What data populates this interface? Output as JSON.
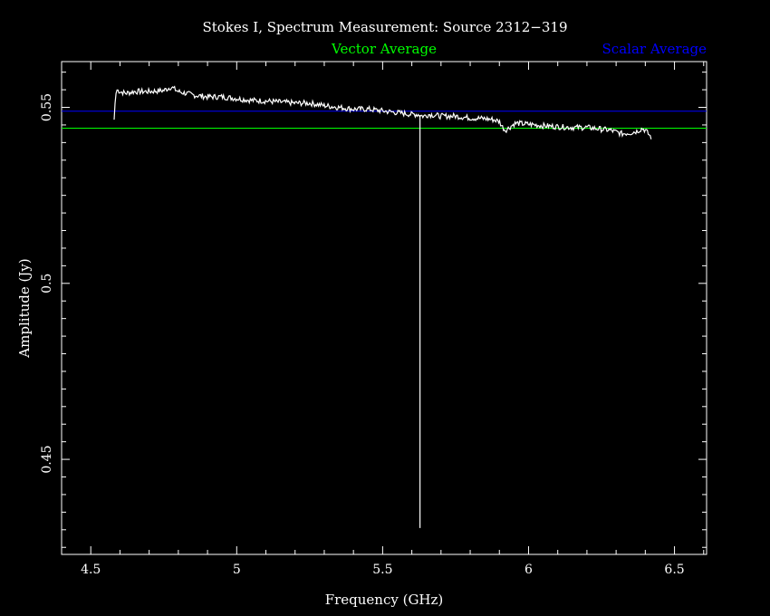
{
  "chart_data": {
    "type": "line",
    "title": "Stokes I, Spectrum Measurement: Source 2312−319",
    "xlabel": "Frequency (GHz)",
    "ylabel": "Amplitude (Jy)",
    "xlim": [
      4.4,
      6.61
    ],
    "ylim": [
      0.423,
      0.563
    ],
    "x_ticks": [
      4.5,
      5,
      5.5,
      6,
      6.5
    ],
    "x_tick_labels": [
      "4.5",
      "5",
      "5.5",
      "6",
      "6.5"
    ],
    "y_ticks": [
      0.45,
      0.5,
      0.55
    ],
    "y_tick_labels": [
      "0.45",
      "0.5",
      "0.55"
    ],
    "grid": false,
    "legend": {
      "placement": "top",
      "entries": [
        {
          "label": "Vector Average",
          "color": "#00ff00"
        },
        {
          "label": "Scalar Average",
          "color": "#0000ff"
        }
      ]
    },
    "reference_lines": [
      {
        "name": "Vector Average",
        "y": 0.5441,
        "color": "#00ff00"
      },
      {
        "name": "Scalar Average",
        "y": 0.5489,
        "color": "#0000ff"
      }
    ],
    "spike": {
      "x": 5.628,
      "y": 0.4305
    },
    "series": [
      {
        "color": "#ffffff",
        "x": [
          4.58,
          4.585,
          4.59,
          4.6,
          4.62,
          4.65,
          4.7,
          4.75,
          4.775,
          4.8,
          4.85,
          4.9,
          4.95,
          5.0,
          5.05,
          5.1,
          5.15,
          5.2,
          5.25,
          5.3,
          5.35,
          5.4,
          5.45,
          5.5,
          5.55,
          5.6,
          5.62,
          5.64,
          5.66,
          5.7,
          5.75,
          5.8,
          5.85,
          5.88,
          5.9,
          5.91,
          5.92,
          5.93,
          5.95,
          5.96,
          6.0,
          6.05,
          6.1,
          6.15,
          6.2,
          6.25,
          6.28,
          6.3,
          6.32,
          6.35,
          6.37,
          6.39,
          6.4,
          6.41,
          6.42
        ],
        "y": [
          0.5465,
          0.5535,
          0.555,
          0.5545,
          0.554,
          0.5545,
          0.5545,
          0.5548,
          0.5558,
          0.5545,
          0.5535,
          0.553,
          0.553,
          0.5525,
          0.552,
          0.5518,
          0.5515,
          0.5512,
          0.5512,
          0.5505,
          0.55,
          0.5495,
          0.5495,
          0.549,
          0.5485,
          0.548,
          0.548,
          0.5475,
          0.548,
          0.5475,
          0.5475,
          0.547,
          0.5468,
          0.5465,
          0.546,
          0.5445,
          0.5435,
          0.544,
          0.5453,
          0.5455,
          0.5452,
          0.5448,
          0.5445,
          0.5443,
          0.5443,
          0.5438,
          0.5435,
          0.543,
          0.5425,
          0.5428,
          0.5432,
          0.544,
          0.5435,
          0.5425,
          0.5415
        ]
      }
    ]
  }
}
